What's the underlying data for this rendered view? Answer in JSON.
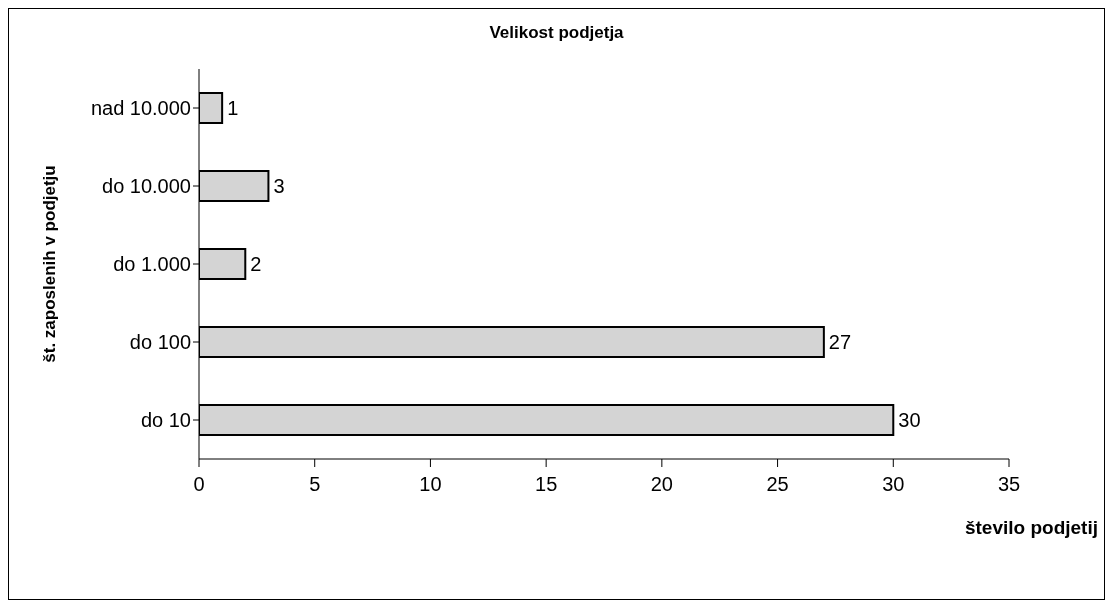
{
  "chart_data": {
    "type": "bar",
    "orientation": "horizontal",
    "title": "Velikost podjetja",
    "xlabel": "število podjetij",
    "ylabel": "št. zaposlenih v podjetju",
    "categories": [
      "nad 10.000",
      "do 10.000",
      "do 1.000",
      "do 100",
      "do 10"
    ],
    "values": [
      1,
      3,
      2,
      27,
      30
    ],
    "color": "#d4d4d4",
    "xlim": [
      0,
      35
    ],
    "xticks": [
      0,
      5,
      10,
      15,
      20,
      25,
      30,
      35
    ],
    "grid": false,
    "data_labels": true
  }
}
